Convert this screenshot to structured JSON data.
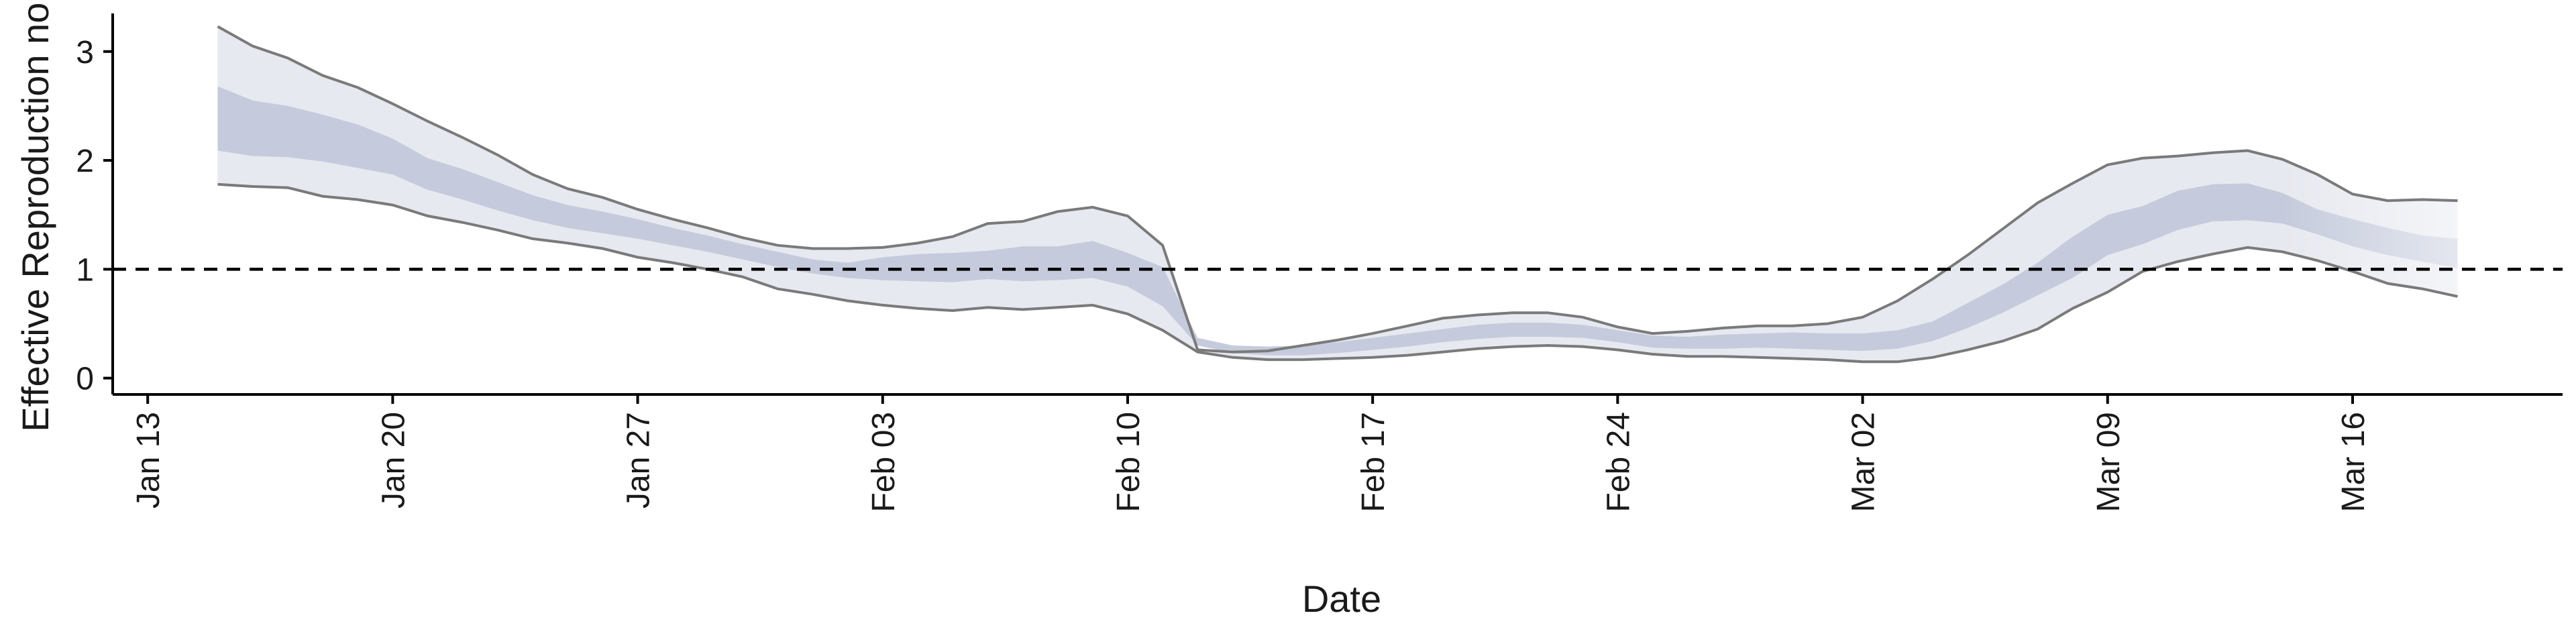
{
  "chart_data": {
    "type": "area",
    "title": "",
    "xlabel": "Date",
    "ylabel": "Effective Reproduction no.",
    "x_axis": {
      "type": "date",
      "range": [
        "2020-01-12",
        "2020-03-22"
      ],
      "ticks": [
        "2020-01-13",
        "2020-01-20",
        "2020-01-27",
        "2020-02-03",
        "2020-02-10",
        "2020-02-17",
        "2020-02-24",
        "2020-03-02",
        "2020-03-09",
        "2020-03-16"
      ],
      "tick_labels": [
        "Jan 13",
        "Jan 20",
        "Jan 27",
        "Feb 03",
        "Feb 10",
        "Feb 17",
        "Feb 24",
        "Mar 02",
        "Mar 09",
        "Mar 16"
      ]
    },
    "y_axis": {
      "range": [
        -0.15,
        3.35
      ],
      "ticks": [
        0,
        1,
        2,
        3
      ],
      "tick_labels": [
        "0",
        "1",
        "2",
        "3"
      ]
    },
    "grid": false,
    "legend": "none",
    "reference_line": {
      "y": 1,
      "style": "dashed"
    },
    "series": {
      "x": [
        "2020-01-15",
        "2020-01-16",
        "2020-01-17",
        "2020-01-18",
        "2020-01-19",
        "2020-01-20",
        "2020-01-21",
        "2020-01-22",
        "2020-01-23",
        "2020-01-24",
        "2020-01-25",
        "2020-01-26",
        "2020-01-27",
        "2020-01-28",
        "2020-01-29",
        "2020-01-30",
        "2020-01-31",
        "2020-02-01",
        "2020-02-02",
        "2020-02-03",
        "2020-02-04",
        "2020-02-05",
        "2020-02-06",
        "2020-02-07",
        "2020-02-08",
        "2020-02-09",
        "2020-02-10",
        "2020-02-11",
        "2020-02-12",
        "2020-02-13",
        "2020-02-14",
        "2020-02-15",
        "2020-02-16",
        "2020-02-17",
        "2020-02-18",
        "2020-02-19",
        "2020-02-20",
        "2020-02-21",
        "2020-02-22",
        "2020-02-23",
        "2020-02-24",
        "2020-02-25",
        "2020-02-26",
        "2020-02-27",
        "2020-02-28",
        "2020-02-29",
        "2020-03-01",
        "2020-03-02",
        "2020-03-03",
        "2020-03-04",
        "2020-03-05",
        "2020-03-06",
        "2020-03-07",
        "2020-03-08",
        "2020-03-09",
        "2020-03-10",
        "2020-03-11",
        "2020-03-12",
        "2020-03-13",
        "2020-03-14",
        "2020-03-15",
        "2020-03-16",
        "2020-03-17",
        "2020-03-18",
        "2020-03-19"
      ],
      "lower_90": [
        1.78,
        1.76,
        1.75,
        1.67,
        1.64,
        1.59,
        1.49,
        1.43,
        1.36,
        1.28,
        1.24,
        1.19,
        1.11,
        1.06,
        1.0,
        0.93,
        0.82,
        0.77,
        0.71,
        0.67,
        0.64,
        0.62,
        0.65,
        0.63,
        0.65,
        0.67,
        0.59,
        0.44,
        0.24,
        0.19,
        0.17,
        0.17,
        0.18,
        0.19,
        0.21,
        0.24,
        0.27,
        0.29,
        0.3,
        0.29,
        0.26,
        0.22,
        0.2,
        0.2,
        0.19,
        0.18,
        0.17,
        0.15,
        0.15,
        0.19,
        0.26,
        0.34,
        0.45,
        0.64,
        0.79,
        0.98,
        1.07,
        1.14,
        1.2,
        1.16,
        1.08,
        0.98,
        0.87,
        0.82,
        0.75
      ],
      "upper_90": [
        3.23,
        3.05,
        2.94,
        2.78,
        2.67,
        2.52,
        2.36,
        2.21,
        2.05,
        1.87,
        1.74,
        1.66,
        1.55,
        1.46,
        1.38,
        1.29,
        1.22,
        1.19,
        1.19,
        1.2,
        1.24,
        1.3,
        1.42,
        1.44,
        1.53,
        1.57,
        1.49,
        1.22,
        0.26,
        0.24,
        0.25,
        0.3,
        0.35,
        0.41,
        0.48,
        0.55,
        0.58,
        0.6,
        0.6,
        0.56,
        0.47,
        0.41,
        0.43,
        0.46,
        0.48,
        0.48,
        0.5,
        0.56,
        0.71,
        0.91,
        1.13,
        1.37,
        1.61,
        1.79,
        1.96,
        2.02,
        2.04,
        2.07,
        2.09,
        2.01,
        1.87,
        1.69,
        1.63,
        1.64,
        1.63
      ],
      "lower_50": [
        2.09,
        2.04,
        2.03,
        1.99,
        1.93,
        1.87,
        1.73,
        1.64,
        1.54,
        1.45,
        1.38,
        1.33,
        1.28,
        1.22,
        1.16,
        1.09,
        1.02,
        0.96,
        0.92,
        0.9,
        0.89,
        0.88,
        0.91,
        0.89,
        0.9,
        0.92,
        0.84,
        0.66,
        0.3,
        0.23,
        0.21,
        0.21,
        0.23,
        0.26,
        0.29,
        0.33,
        0.36,
        0.38,
        0.38,
        0.37,
        0.33,
        0.28,
        0.27,
        0.27,
        0.28,
        0.27,
        0.26,
        0.25,
        0.27,
        0.34,
        0.46,
        0.6,
        0.76,
        0.92,
        1.13,
        1.23,
        1.36,
        1.44,
        1.45,
        1.42,
        1.32,
        1.21,
        1.13,
        1.07,
        1.01
      ],
      "upper_50": [
        2.68,
        2.55,
        2.5,
        2.42,
        2.33,
        2.2,
        2.02,
        1.92,
        1.8,
        1.68,
        1.59,
        1.53,
        1.46,
        1.38,
        1.31,
        1.23,
        1.16,
        1.09,
        1.06,
        1.11,
        1.14,
        1.15,
        1.17,
        1.21,
        1.21,
        1.26,
        1.15,
        1.02,
        0.37,
        0.3,
        0.29,
        0.3,
        0.33,
        0.37,
        0.41,
        0.45,
        0.49,
        0.51,
        0.51,
        0.49,
        0.44,
        0.39,
        0.38,
        0.4,
        0.41,
        0.42,
        0.41,
        0.41,
        0.44,
        0.52,
        0.69,
        0.86,
        1.06,
        1.3,
        1.5,
        1.58,
        1.72,
        1.78,
        1.79,
        1.7,
        1.55,
        1.46,
        1.38,
        1.31,
        1.28
      ]
    },
    "colors": {
      "band_90": "#e7e9f0",
      "band_50": "#c5cbdc",
      "outline": "#7a7a7a",
      "reference_line": "#000000",
      "axis": "#000000"
    }
  }
}
